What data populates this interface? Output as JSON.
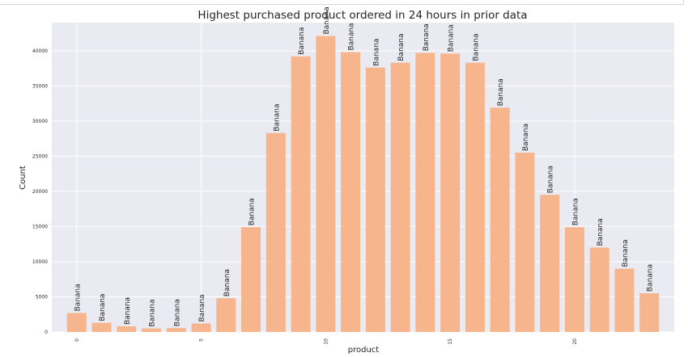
{
  "chart_data": {
    "type": "bar",
    "title": "Highest purchased product ordered in 24 hours in prior data",
    "xlabel": "product",
    "ylabel": "Count",
    "x": [
      0,
      1,
      2,
      3,
      4,
      5,
      6,
      7,
      8,
      9,
      10,
      11,
      12,
      13,
      14,
      15,
      16,
      17,
      18,
      19,
      20,
      21,
      22,
      23
    ],
    "values": [
      2700,
      1300,
      800,
      500,
      550,
      1200,
      4800,
      14900,
      28300,
      39200,
      42100,
      39800,
      37600,
      38300,
      39700,
      39600,
      38300,
      31900,
      25500,
      19500,
      14900,
      12000,
      9000,
      5500
    ],
    "bar_labels": [
      "Banana",
      "Banana",
      "Banana",
      "Banana",
      "Banana",
      "Banana",
      "Banana",
      "Banana",
      "Banana",
      "Banana",
      "Banana",
      "Banana",
      "Banana",
      "Banana",
      "Banana",
      "Banana",
      "Banana",
      "Banana",
      "Banana",
      "Banana",
      "Banana",
      "Banana",
      "Banana",
      "Banana"
    ],
    "x_ticks": [
      0,
      5,
      10,
      15,
      20
    ],
    "y_ticks": [
      0,
      5000,
      10000,
      15000,
      20000,
      25000,
      30000,
      35000,
      40000
    ],
    "ylim": [
      0,
      44000
    ],
    "xlim": [
      -1,
      24
    ],
    "grid": true,
    "colors": {
      "bar": "#f7b58d",
      "plot_bg": "#eaeaf2",
      "grid": "#ffffff",
      "text": "#262626"
    }
  }
}
